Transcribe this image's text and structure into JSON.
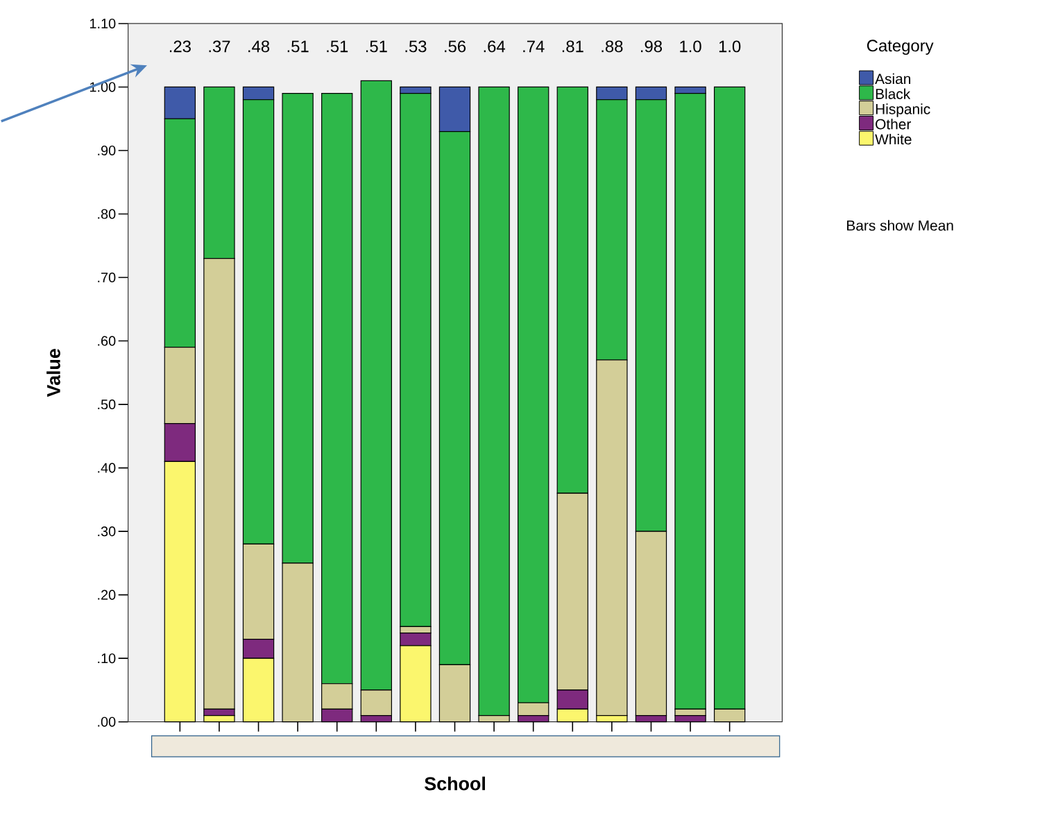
{
  "chart_data": {
    "type": "bar",
    "stacked": true,
    "xlabel": "School",
    "ylabel": "Value",
    "legend_title": "Category",
    "legend": "right",
    "tick_labels": "y",
    "categories": [
      null,
      null,
      null,
      null,
      null,
      null,
      null,
      null,
      null,
      null,
      null,
      null,
      null,
      null,
      null
    ],
    "ylim": [
      0,
      1.1
    ],
    "yticks": [
      {
        "value": 0,
        "label": ".00"
      },
      {
        "value": 0.1,
        "label": ".10"
      },
      {
        "value": 0.2,
        "label": ".20"
      },
      {
        "value": 0.3,
        "label": ".30"
      },
      {
        "value": 0.4,
        "label": ".40"
      },
      {
        "value": 0.5,
        "label": ".50"
      },
      {
        "value": 0.6,
        "label": ".60"
      },
      {
        "value": 0.7,
        "label": ".70"
      },
      {
        "value": 0.8,
        "label": ".80"
      },
      {
        "value": 0.9,
        "label": ".90"
      },
      {
        "value": 1.0,
        "label": "1.00"
      },
      {
        "value": 1.1,
        "label": "1.10"
      }
    ],
    "series": [
      {
        "name": "White",
        "color": "#fbf66d",
        "values": [
          0.41,
          0.01,
          0.1,
          0,
          0,
          0,
          0.12,
          0,
          0,
          0,
          0.02,
          0.01,
          0,
          0,
          0
        ]
      },
      {
        "name": "Other",
        "color": "#7e2a7e",
        "values": [
          0.06,
          0.01,
          0.03,
          0,
          0.02,
          0.01,
          0.02,
          0,
          0,
          0.01,
          0.03,
          0,
          0.01,
          0.01,
          0
        ]
      },
      {
        "name": "Hispanic",
        "color": "#d3ce98",
        "values": [
          0.12,
          0.71,
          0.15,
          0.25,
          0.04,
          0.04,
          0.01,
          0.09,
          0.01,
          0.02,
          0.31,
          0.56,
          0.29,
          0.01,
          0.02
        ]
      },
      {
        "name": "Black",
        "color": "#2eb84a",
        "values": [
          0.36,
          0.27,
          0.7,
          0.74,
          0.93,
          0.96,
          0.84,
          0.84,
          0.99,
          0.97,
          0.64,
          0.41,
          0.68,
          0.97,
          0.98
        ]
      },
      {
        "name": "Asian",
        "color": "#3f5aa9",
        "values": [
          0.05,
          0,
          0.02,
          0,
          0,
          0,
          0.01,
          0.07,
          0,
          0,
          0,
          0.02,
          0.02,
          0.01,
          0
        ]
      }
    ],
    "annotations": [
      ".23",
      ".37",
      ".48",
      ".51",
      ".51",
      ".51",
      ".53",
      ".56",
      ".64",
      ".74",
      ".81",
      ".88",
      ".98",
      "1.0",
      "1.0",
      "Bars show Mean"
    ]
  }
}
